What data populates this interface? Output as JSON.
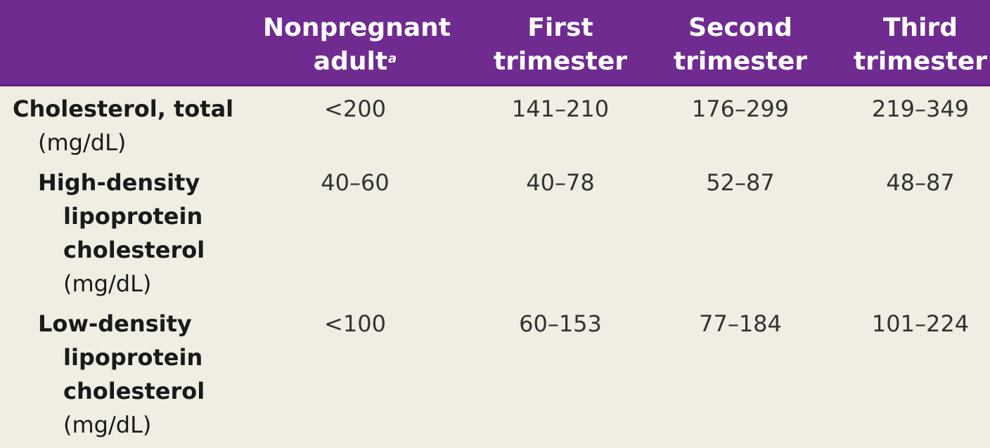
{
  "header": {
    "col1_line1": "Nonpregnant",
    "col1_line2": "adult",
    "col1_footnote": "a",
    "col2_line1": "First",
    "col2_line2": "trimester",
    "col3_line1": "Second",
    "col3_line2": "trimester",
    "col4_line1": "Third",
    "col4_line2": "trimester"
  },
  "rows": [
    {
      "label_lines": [
        "Cholesterol, total"
      ],
      "unit": "(mg/dL)",
      "values": [
        "<200",
        "141–210",
        "176–299",
        "219–349"
      ]
    },
    {
      "label_lines": [
        "High-density",
        "lipoprotein",
        "cholesterol"
      ],
      "unit": "(mg/dL)",
      "values": [
        "40–60",
        "40–78",
        "52–87",
        "48–87"
      ]
    },
    {
      "label_lines": [
        "Low-density",
        "lipoprotein",
        "cholesterol"
      ],
      "unit": "(mg/dL)",
      "values": [
        "<100",
        "60–153",
        "77–184",
        "101–224"
      ]
    }
  ],
  "colors": {
    "header_background": "#702b91",
    "header_text": "#ffffff",
    "body_background": "#f0ede3"
  }
}
